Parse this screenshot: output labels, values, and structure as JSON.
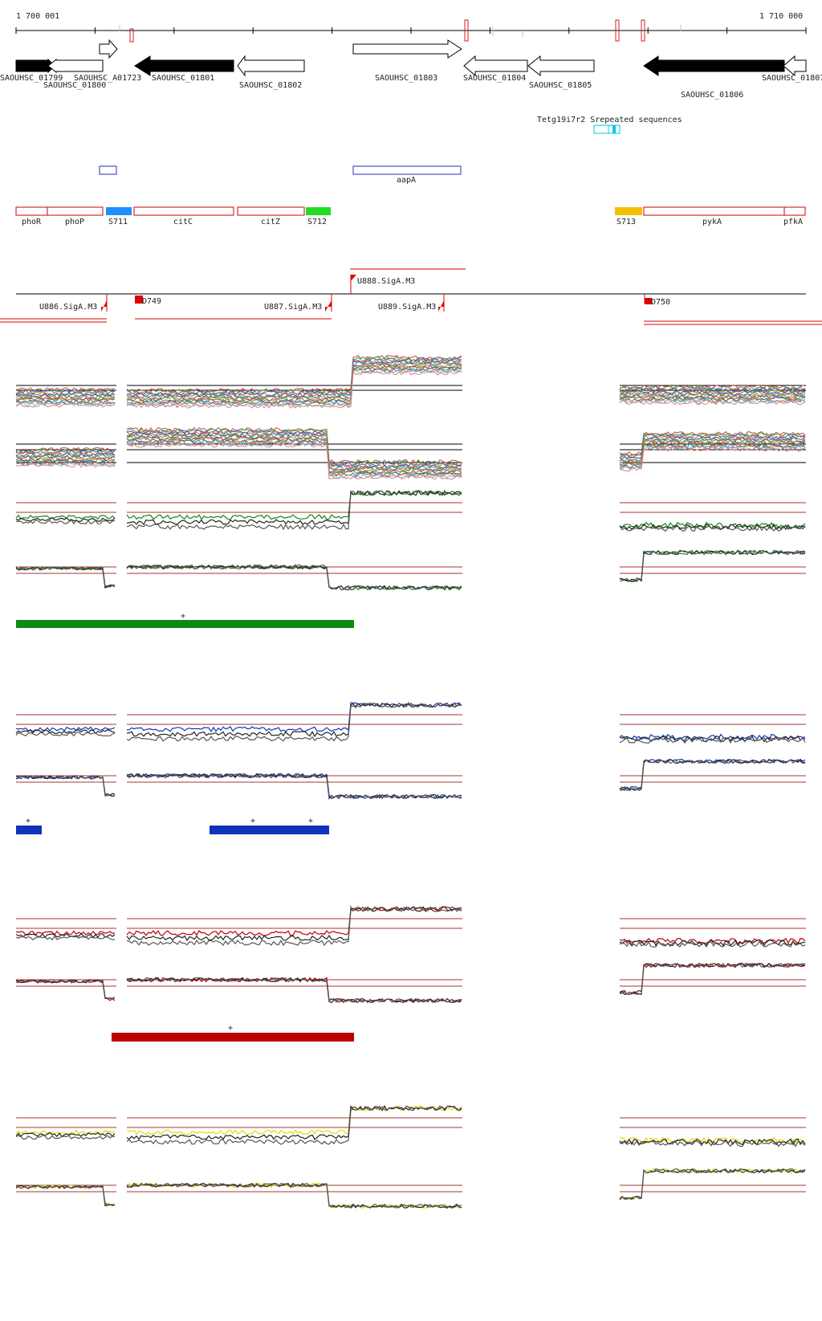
{
  "ruler": {
    "start_label": "1 700 001",
    "end_label": "1 710 000"
  },
  "genes": [
    {
      "label": "SAOUHSC_01799",
      "strand": "-",
      "filled": true
    },
    {
      "label": "SAOUHSC_01800",
      "strand": "-",
      "filled": false
    },
    {
      "label": "SAOUHSC_A01723",
      "strand": "+",
      "filled": false
    },
    {
      "label": "SAOUHSC_01801",
      "strand": "-",
      "filled": true
    },
    {
      "label": "SAOUHSC_01802",
      "strand": "-",
      "filled": false
    },
    {
      "label": "SAOUHSC_01803",
      "strand": "+",
      "filled": false
    },
    {
      "label": "SAOUHSC_01804",
      "strand": "-",
      "filled": false
    },
    {
      "label": "SAOUHSC_01805",
      "strand": "-",
      "filled": false
    },
    {
      "label": "SAOUHSC_01806",
      "strand": "-",
      "filled": true
    },
    {
      "label": "SAOUHSC_01807",
      "strand": "-",
      "filled": false
    }
  ],
  "repeats_label": "Tetg19i7r2 Srepeated sequences",
  "proteins": [
    {
      "label": ""
    },
    {
      "label": "aapA"
    }
  ],
  "features": [
    {
      "label": "phoR",
      "kind": "cds",
      "color": "#cc0000"
    },
    {
      "label": "phoP",
      "kind": "cds",
      "color": "#cc0000"
    },
    {
      "label": "S711",
      "kind": "srna",
      "color": "#1e90ff"
    },
    {
      "label": "citC",
      "kind": "cds",
      "color": "#cc0000"
    },
    {
      "label": "citZ",
      "kind": "cds",
      "color": "#cc0000"
    },
    {
      "label": "S712",
      "kind": "srna",
      "color": "#22dd22"
    },
    {
      "label": "S713",
      "kind": "srna",
      "color": "#f5c000"
    },
    {
      "label": "pykA",
      "kind": "cds",
      "color": "#cc0000"
    },
    {
      "label": "pfkA",
      "kind": "cds",
      "color": "#cc0000"
    }
  ],
  "promoters": [
    {
      "label": "U886.SigA.M3"
    },
    {
      "label": "D749"
    },
    {
      "label": "U887.SigA.M3"
    },
    {
      "label": "U888.SigA.M3"
    },
    {
      "label": "U889.SigA.M3"
    },
    {
      "label": "D750"
    }
  ],
  "tracks": {
    "green_marks": [
      "+"
    ],
    "blue_marks": [
      "+",
      "+",
      "+"
    ],
    "red_marks": [
      "+"
    ]
  },
  "colors": {
    "green": "#118811",
    "blue": "#1133bb",
    "red": "#bb0000",
    "yellow": "#dddd00",
    "threshold": "#aa3333"
  }
}
